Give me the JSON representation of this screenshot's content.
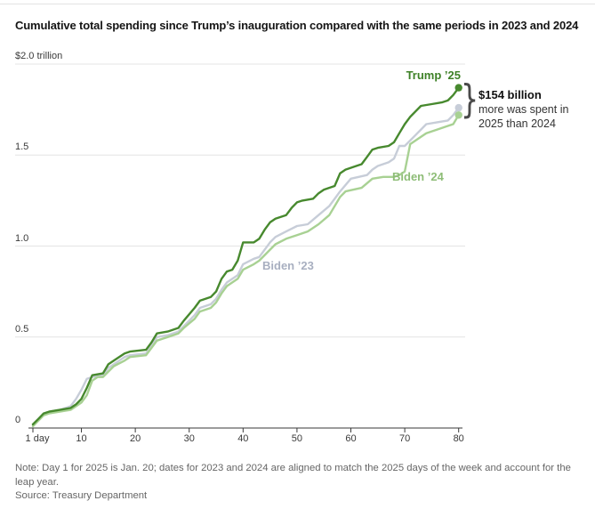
{
  "header": {
    "title": "Cumulative total spending since Trump’s inauguration compared with the same periods in 2023 and 2024"
  },
  "annotation": {
    "brace_glyph": "}",
    "headline": "$154 billion",
    "line2": "more was spent in",
    "line3": "2025 than 2024"
  },
  "footer": {
    "note": "Note: Day 1 for 2025 is Jan. 20; dates for 2023 and 2024 are aligned to match the 2025 days of the week and account for the leap year.",
    "source": "Source: Treasury Department"
  },
  "colors": {
    "grid": "#e4e4e4",
    "axis": "#3a3a3a",
    "trump_line": "#47892e",
    "trump_label": "#3e8127",
    "biden24_line": "#a8d193",
    "biden24_label": "#8ebd77",
    "biden23_line": "#c7cdd8",
    "biden23_label": "#a8afc0"
  },
  "chart_data": {
    "type": "line",
    "title": "Cumulative total spending since Trump’s inauguration compared with the same periods in 2023 and 2024",
    "x_axis": {
      "ticks": [
        1,
        10,
        20,
        30,
        40,
        50,
        60,
        70,
        80
      ],
      "tick_labels": [
        "1 day",
        "10",
        "20",
        "30",
        "40",
        "50",
        "60",
        "70",
        "80"
      ],
      "range": [
        1,
        80
      ]
    },
    "y_axis": {
      "ticks": [
        0,
        0.5,
        1.0,
        1.5,
        2.0
      ],
      "tick_labels": [
        "0",
        "0.5",
        "1.0",
        "1.5",
        "$2.0 trillion"
      ],
      "range": [
        0,
        2.0
      ],
      "unit": "trillion dollars"
    },
    "grid": true,
    "legend": "inline-labels",
    "series": [
      {
        "id": "trump-25",
        "name": "Trump ’25",
        "color": "#47892e",
        "label_color": "#3e8127",
        "end_value_trillions": 1.87,
        "points": [
          [
            1,
            0.02
          ],
          [
            2,
            0.05
          ],
          [
            3,
            0.08
          ],
          [
            4,
            0.09
          ],
          [
            6,
            0.1
          ],
          [
            8,
            0.11
          ],
          [
            9,
            0.13
          ],
          [
            10,
            0.16
          ],
          [
            11,
            0.22
          ],
          [
            12,
            0.29
          ],
          [
            14,
            0.3
          ],
          [
            15,
            0.35
          ],
          [
            16,
            0.37
          ],
          [
            18,
            0.41
          ],
          [
            19,
            0.42
          ],
          [
            22,
            0.43
          ],
          [
            23,
            0.47
          ],
          [
            24,
            0.52
          ],
          [
            26,
            0.53
          ],
          [
            28,
            0.55
          ],
          [
            29,
            0.59
          ],
          [
            31,
            0.66
          ],
          [
            32,
            0.7
          ],
          [
            34,
            0.72
          ],
          [
            35,
            0.75
          ],
          [
            36,
            0.82
          ],
          [
            37,
            0.86
          ],
          [
            38,
            0.87
          ],
          [
            39,
            0.92
          ],
          [
            40,
            1.02
          ],
          [
            42,
            1.02
          ],
          [
            43,
            1.04
          ],
          [
            44,
            1.09
          ],
          [
            45,
            1.13
          ],
          [
            46,
            1.15
          ],
          [
            48,
            1.17
          ],
          [
            49,
            1.21
          ],
          [
            50,
            1.24
          ],
          [
            51,
            1.25
          ],
          [
            53,
            1.26
          ],
          [
            54,
            1.29
          ],
          [
            55,
            1.31
          ],
          [
            57,
            1.33
          ],
          [
            58,
            1.4
          ],
          [
            59,
            1.42
          ],
          [
            61,
            1.44
          ],
          [
            62,
            1.45
          ],
          [
            63,
            1.49
          ],
          [
            64,
            1.53
          ],
          [
            65,
            1.54
          ],
          [
            67,
            1.55
          ],
          [
            68,
            1.57
          ],
          [
            69,
            1.62
          ],
          [
            70,
            1.67
          ],
          [
            71,
            1.71
          ],
          [
            72,
            1.74
          ],
          [
            73,
            1.77
          ],
          [
            75,
            1.78
          ],
          [
            77,
            1.79
          ],
          [
            78,
            1.8
          ],
          [
            79,
            1.83
          ],
          [
            80,
            1.87
          ]
        ]
      },
      {
        "id": "biden-24",
        "name": "Biden ’24",
        "color": "#a8d193",
        "label_color": "#8ebd77",
        "end_value_trillions": 1.72,
        "points": [
          [
            1,
            0.01
          ],
          [
            2,
            0.04
          ],
          [
            3,
            0.07
          ],
          [
            4,
            0.08
          ],
          [
            6,
            0.09
          ],
          [
            8,
            0.1
          ],
          [
            9,
            0.12
          ],
          [
            10,
            0.14
          ],
          [
            11,
            0.18
          ],
          [
            12,
            0.26
          ],
          [
            13,
            0.28
          ],
          [
            14,
            0.28
          ],
          [
            15,
            0.31
          ],
          [
            16,
            0.34
          ],
          [
            18,
            0.37
          ],
          [
            19,
            0.39
          ],
          [
            22,
            0.4
          ],
          [
            23,
            0.44
          ],
          [
            24,
            0.48
          ],
          [
            26,
            0.5
          ],
          [
            28,
            0.52
          ],
          [
            29,
            0.55
          ],
          [
            31,
            0.6
          ],
          [
            32,
            0.64
          ],
          [
            34,
            0.66
          ],
          [
            35,
            0.69
          ],
          [
            36,
            0.74
          ],
          [
            37,
            0.78
          ],
          [
            39,
            0.82
          ],
          [
            40,
            0.87
          ],
          [
            42,
            0.9
          ],
          [
            43,
            0.92
          ],
          [
            45,
            0.98
          ],
          [
            46,
            1.01
          ],
          [
            48,
            1.04
          ],
          [
            50,
            1.06
          ],
          [
            52,
            1.08
          ],
          [
            54,
            1.12
          ],
          [
            56,
            1.17
          ],
          [
            58,
            1.27
          ],
          [
            59,
            1.3
          ],
          [
            62,
            1.32
          ],
          [
            64,
            1.37
          ],
          [
            66,
            1.38
          ],
          [
            68,
            1.38
          ],
          [
            69,
            1.39
          ],
          [
            70,
            1.41
          ],
          [
            71,
            1.56
          ],
          [
            73,
            1.6
          ],
          [
            74,
            1.62
          ],
          [
            76,
            1.64
          ],
          [
            78,
            1.66
          ],
          [
            79,
            1.67
          ],
          [
            80,
            1.72
          ]
        ]
      },
      {
        "id": "biden-23",
        "name": "Biden ’23",
        "color": "#c7cdd8",
        "label_color": "#a8afc0",
        "end_value_trillions": 1.76,
        "points": [
          [
            1,
            0.02
          ],
          [
            2,
            0.05
          ],
          [
            3,
            0.08
          ],
          [
            4,
            0.09
          ],
          [
            6,
            0.1
          ],
          [
            8,
            0.12
          ],
          [
            9,
            0.16
          ],
          [
            10,
            0.21
          ],
          [
            11,
            0.27
          ],
          [
            12,
            0.28
          ],
          [
            14,
            0.29
          ],
          [
            15,
            0.33
          ],
          [
            16,
            0.35
          ],
          [
            18,
            0.39
          ],
          [
            19,
            0.4
          ],
          [
            22,
            0.41
          ],
          [
            23,
            0.45
          ],
          [
            24,
            0.5
          ],
          [
            26,
            0.51
          ],
          [
            28,
            0.53
          ],
          [
            29,
            0.56
          ],
          [
            31,
            0.62
          ],
          [
            32,
            0.66
          ],
          [
            34,
            0.68
          ],
          [
            35,
            0.71
          ],
          [
            36,
            0.76
          ],
          [
            37,
            0.8
          ],
          [
            39,
            0.84
          ],
          [
            40,
            0.9
          ],
          [
            42,
            0.93
          ],
          [
            43,
            0.94
          ],
          [
            45,
            1.02
          ],
          [
            46,
            1.05
          ],
          [
            48,
            1.08
          ],
          [
            50,
            1.11
          ],
          [
            52,
            1.12
          ],
          [
            54,
            1.17
          ],
          [
            56,
            1.22
          ],
          [
            58,
            1.3
          ],
          [
            60,
            1.37
          ],
          [
            63,
            1.39
          ],
          [
            64,
            1.42
          ],
          [
            65,
            1.44
          ],
          [
            67,
            1.46
          ],
          [
            68,
            1.48
          ],
          [
            69,
            1.55
          ],
          [
            70,
            1.55
          ],
          [
            71,
            1.58
          ],
          [
            72,
            1.61
          ],
          [
            73,
            1.64
          ],
          [
            74,
            1.67
          ],
          [
            76,
            1.68
          ],
          [
            78,
            1.69
          ],
          [
            79,
            1.72
          ],
          [
            80,
            1.76
          ]
        ]
      }
    ]
  }
}
